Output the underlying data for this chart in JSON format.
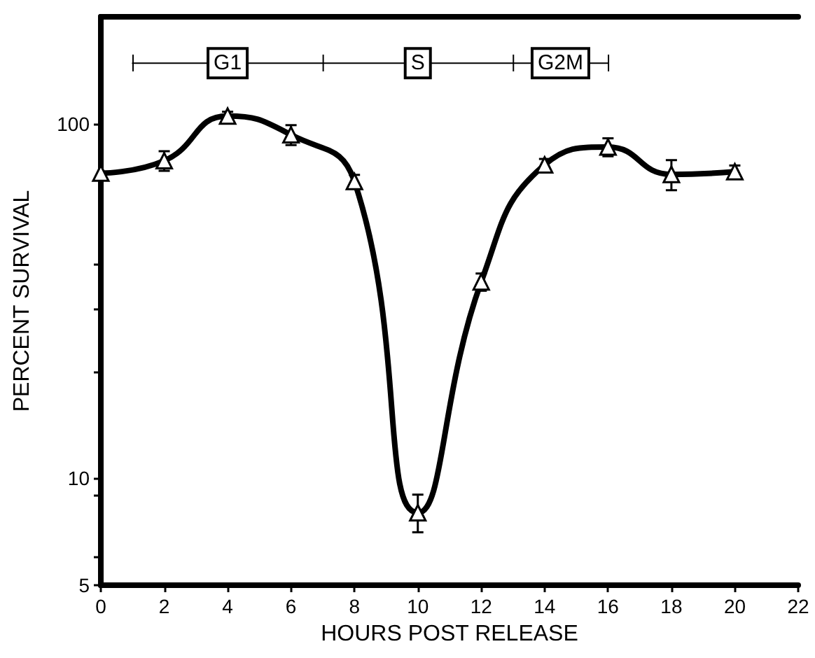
{
  "chart_data": {
    "type": "line",
    "xlabel": "HOURS POST RELEASE",
    "ylabel": "PERCENT SURVIVAL",
    "x": [
      0,
      2,
      4,
      6,
      8,
      10,
      12,
      14,
      16,
      18,
      20
    ],
    "series": [
      {
        "color": "#000000",
        "values": [
          72.5,
          78.6,
          105,
          93,
          68.7,
          8.0,
          35.8,
          76.5,
          85.9,
          71.9,
          73.2
        ],
        "errors": [
          null,
          5,
          3,
          6,
          3,
          [
            7.05,
            9.0
          ],
          2,
          3,
          5,
          7,
          3
        ]
      },
      {
        "color": "#000000",
        "x": [
          1,
          7,
          13,
          16
        ],
        "values": [
          148,
          148,
          148,
          148
        ],
        "marker": "none"
      }
    ],
    "annotations": [
      {
        "text": "G1",
        "x": 4,
        "y": 148
      },
      {
        "text": "S",
        "x": 10,
        "y": 148
      },
      {
        "text": "G2M",
        "x": 14.5,
        "y": 148
      }
    ],
    "log": "y",
    "xlim": [
      0,
      22
    ],
    "xticks": [
      0,
      2,
      4,
      6,
      8,
      10,
      12,
      14,
      16,
      18,
      20,
      22
    ],
    "ylim": [
      5,
      200
    ],
    "yticks": [
      5,
      {
        "value": 6,
        "label": null
      },
      {
        "value": 9,
        "label": null
      },
      10,
      {
        "value": 20,
        "label": null
      },
      {
        "value": 30,
        "label": null
      },
      {
        "value": 40,
        "label": null
      },
      100
    ],
    "grid": false,
    "marker": "triangle",
    "line_style": "solid"
  }
}
